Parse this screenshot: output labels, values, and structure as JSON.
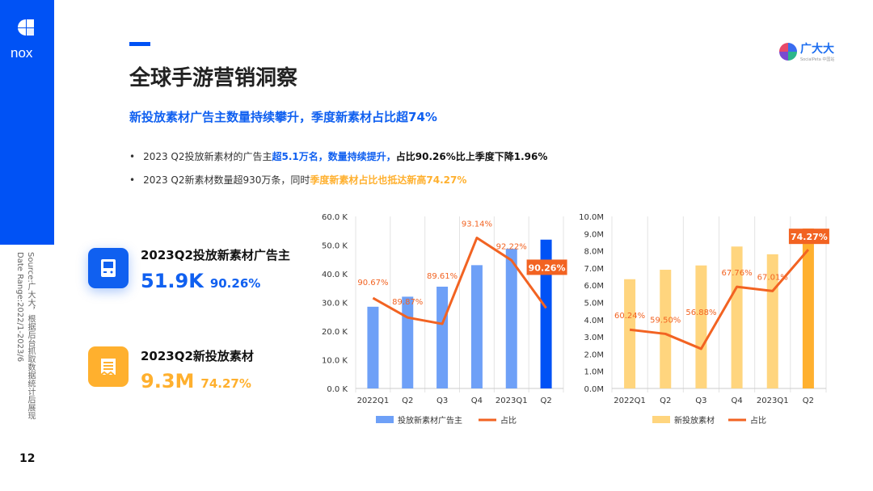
{
  "sidebar": {
    "logo_text": "nox",
    "source": "Source:广大大，根据后台抓取数据统计后展现",
    "date_range": "Date Range:2022/1-2023/6",
    "page_number": "12",
    "color": "#0052f5"
  },
  "brand": {
    "name": "广大大",
    "sub": "SocialPeta 中国站"
  },
  "header": {
    "title": "全球手游营销洞察",
    "subtitle": "新投放素材广告主数量持续攀升，季度新素材占比超74%"
  },
  "bullets": [
    {
      "parts": [
        "2023 Q2投放新素材的广告主",
        "超5.1万名，数量持续提升，",
        "占比90.26%比上季度下降1.96%"
      ]
    },
    {
      "parts": [
        "2023 Q2新素材数量超930万条，同时",
        "季度新素材占比也抵达新高74.27%"
      ]
    }
  ],
  "cards": [
    {
      "title": "2023Q2投放新素材广告主",
      "value": "51.9K",
      "pct": "90.26%",
      "icon": "gamepad-icon",
      "color": "#1060f0"
    },
    {
      "title": "2023Q2新投放素材",
      "value": "9.3M",
      "pct": "74.27%",
      "icon": "document-icon",
      "color": "#ffb02e"
    }
  ],
  "chart_data": [
    {
      "type": "bar+line",
      "categories": [
        "2022Q1",
        "Q2",
        "Q3",
        "Q4",
        "2023Q1",
        "Q2"
      ],
      "series": [
        {
          "name": "投放新素材广告主",
          "type": "bar",
          "values": [
            28.5,
            32.0,
            35.5,
            43.0,
            48.7,
            51.9
          ],
          "unit": "K",
          "color": "#6ea0f7",
          "highlight_color": "#0052f5"
        },
        {
          "name": "占比",
          "type": "line",
          "values": [
            90.67,
            89.87,
            89.61,
            93.14,
            92.22,
            90.26
          ],
          "labels": [
            "90.67%",
            "89.87%",
            "89.61%",
            "93.14%",
            "92.22%",
            "90.26%"
          ],
          "color": "#f26322"
        }
      ],
      "yticks": [
        "0.0 K",
        "10.0 K",
        "20.0 K",
        "30.0 K",
        "40.0 K",
        "50.0 K",
        "60.0 K"
      ],
      "ylim": [
        0,
        60
      ],
      "y2lim": [
        86.96,
        94.02
      ],
      "grid": "vertical",
      "legend": "bottom"
    },
    {
      "type": "bar+line",
      "categories": [
        "2022Q1",
        "Q2",
        "Q3",
        "Q4",
        "2023Q1",
        "Q2"
      ],
      "series": [
        {
          "name": "新投放素材",
          "type": "bar",
          "values": [
            6.35,
            6.9,
            7.15,
            8.25,
            7.8,
            9.3
          ],
          "unit": "M",
          "color": "#ffd57e",
          "highlight_color": "#ffb02e"
        },
        {
          "name": "占比",
          "type": "line",
          "values": [
            60.24,
            59.5,
            56.88,
            67.76,
            67.01,
            74.27
          ],
          "labels": [
            "60.24%",
            "59.50%",
            "56.88%",
            "67.76%",
            "67.01%",
            "74.27%"
          ],
          "color": "#f26322"
        }
      ],
      "yticks": [
        "0.0M",
        "1.0M",
        "2.0M",
        "3.0M",
        "4.0M",
        "5.0M",
        "6.0M",
        "7.0M",
        "8.0M",
        "9.0M",
        "10.0M"
      ],
      "ylim": [
        0,
        10
      ],
      "y2lim": [
        49.93,
        80.1
      ],
      "grid": "vertical",
      "legend": "bottom"
    }
  ]
}
